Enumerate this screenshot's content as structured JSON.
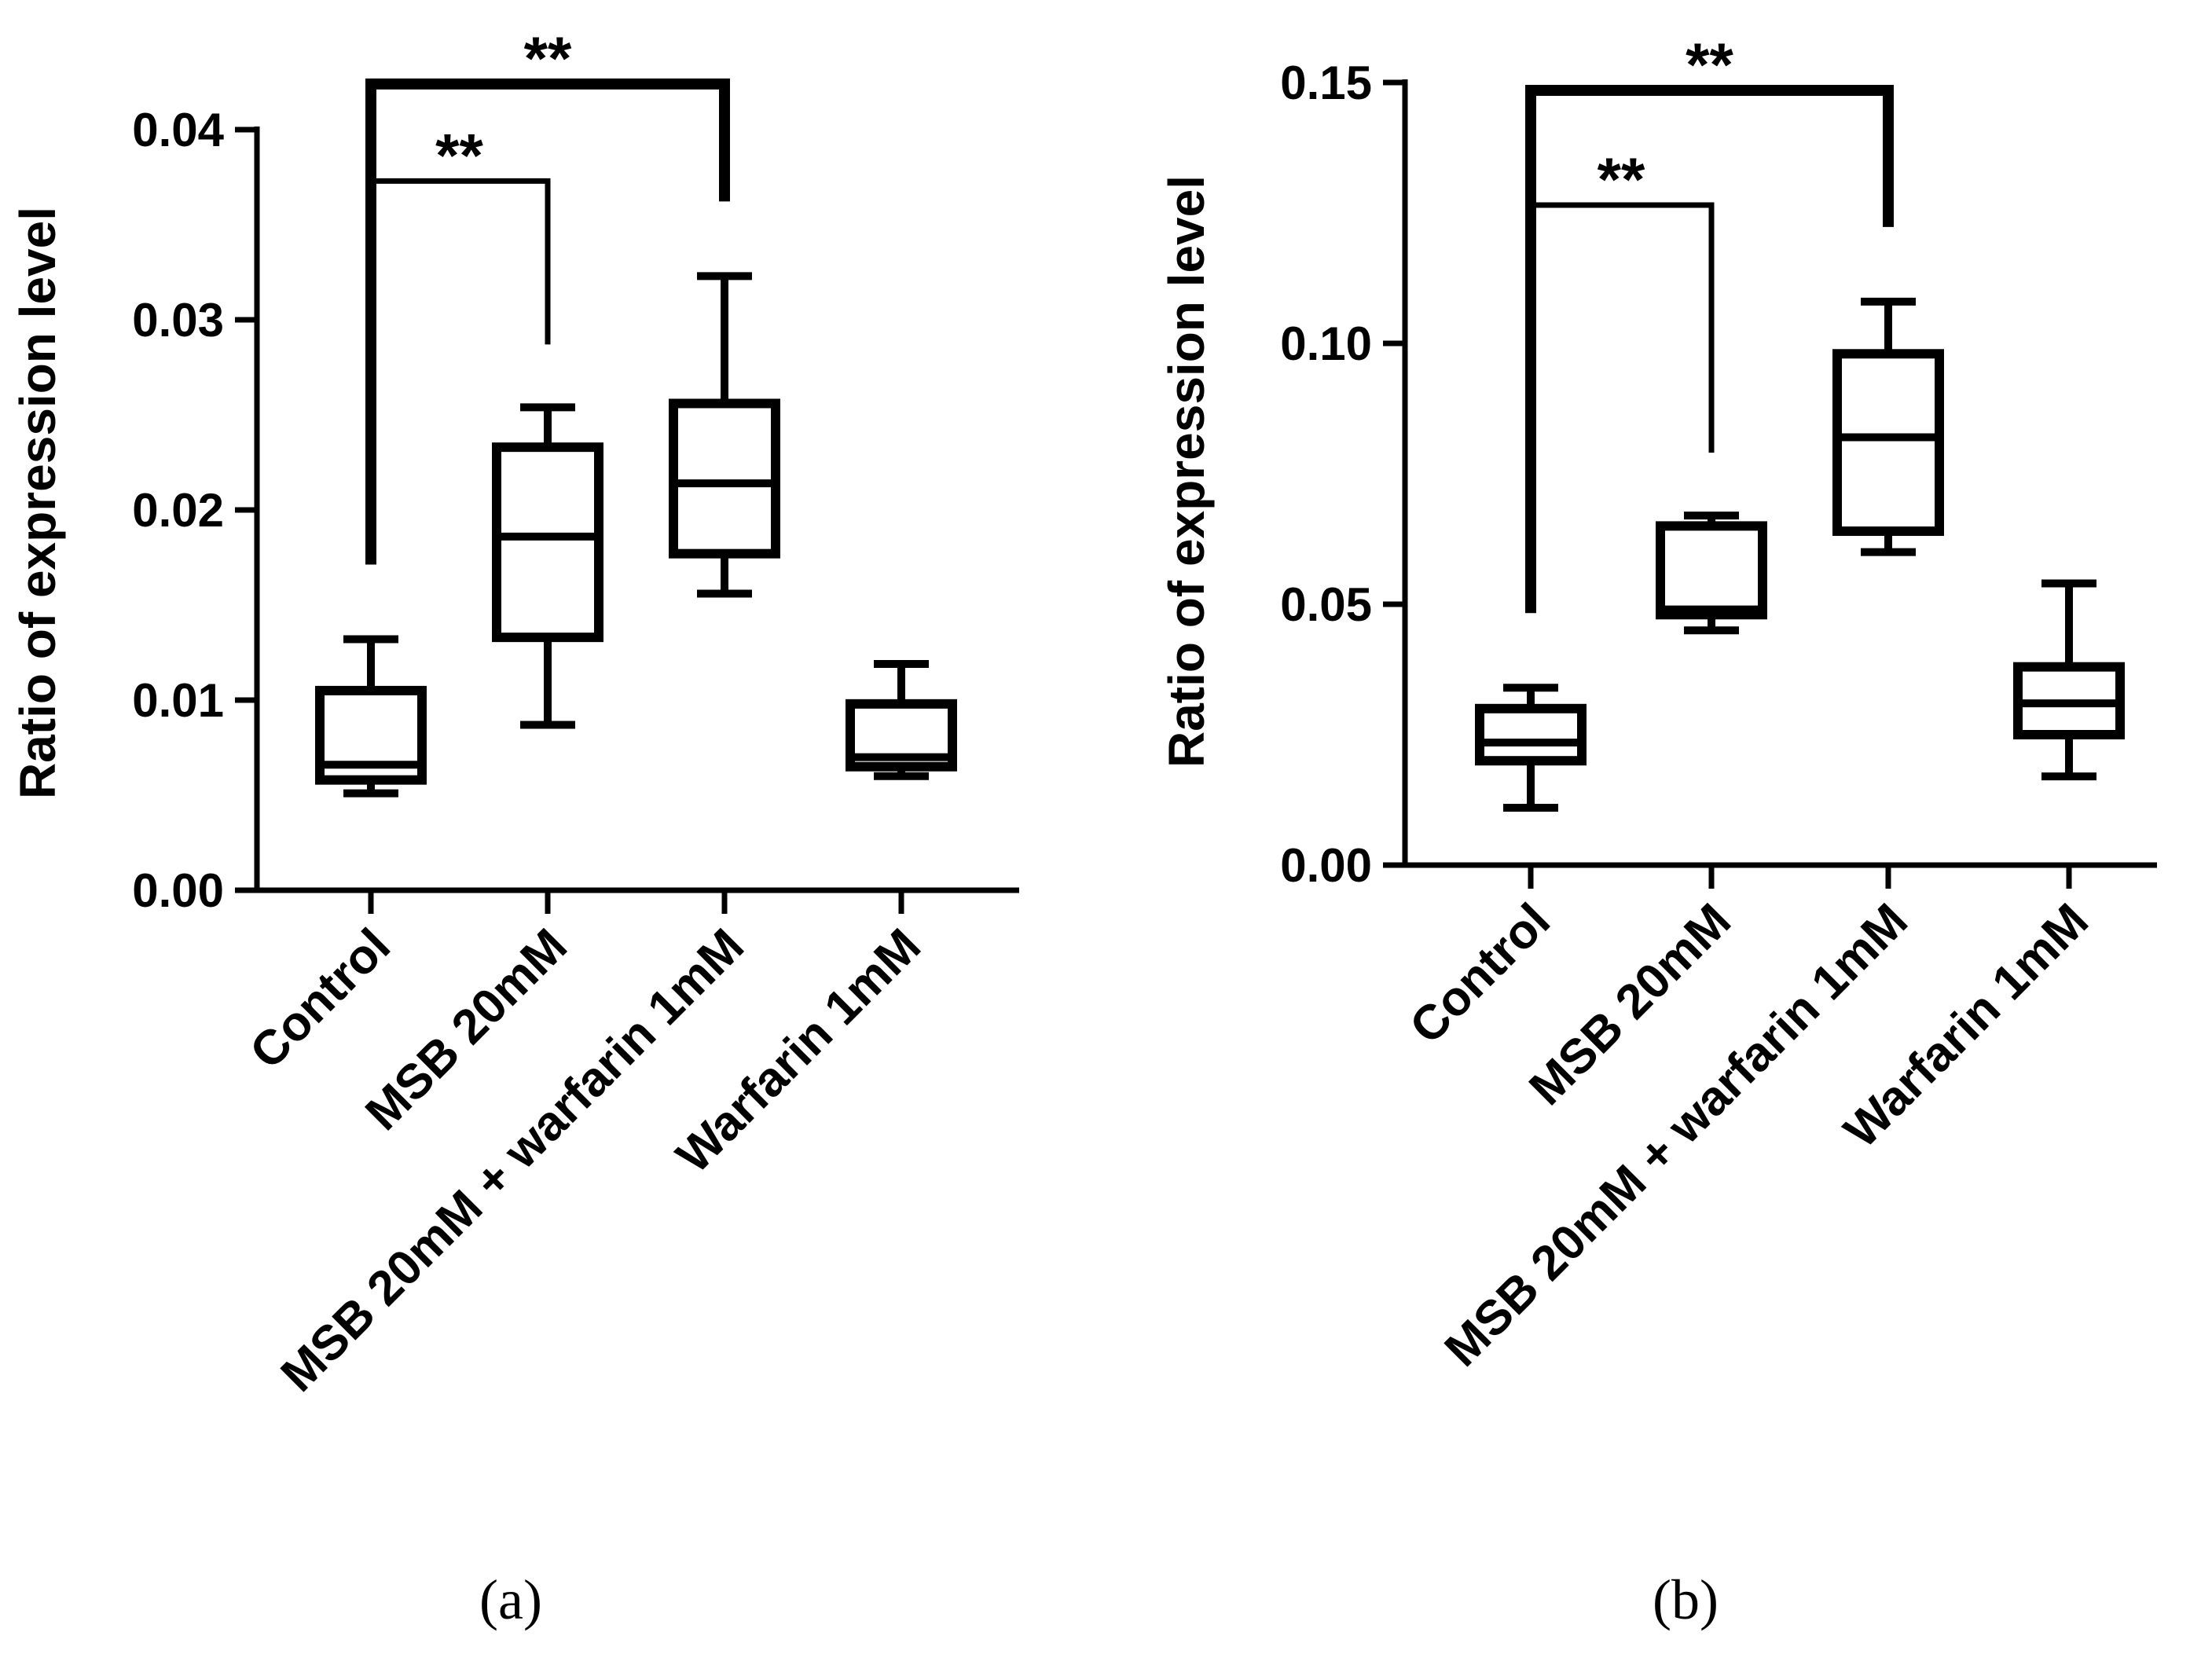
{
  "chart_data": [
    {
      "type": "box",
      "panel_label": "(a)",
      "ylabel": "Ratio of expression level",
      "ylim": [
        0,
        0.04
      ],
      "yticks": [
        "0.00",
        "0.01",
        "0.02",
        "0.03",
        "0.04"
      ],
      "categories": [
        "Control",
        "MSB 20mM",
        "MSB 20mM + warfarin 1mM",
        "Warfarin 1mM"
      ],
      "boxes": [
        {
          "min": 0.0051,
          "q1": 0.0058,
          "median": 0.0066,
          "q3": 0.0105,
          "max": 0.0132
        },
        {
          "min": 0.0087,
          "q1": 0.0133,
          "median": 0.0186,
          "q3": 0.0233,
          "max": 0.0254
        },
        {
          "min": 0.0156,
          "q1": 0.0177,
          "median": 0.0214,
          "q3": 0.0256,
          "max": 0.0323
        },
        {
          "min": 0.006,
          "q1": 0.0065,
          "median": 0.007,
          "q3": 0.0098,
          "max": 0.0119
        }
      ],
      "significance": [
        {
          "from": 0,
          "to": 1,
          "label": "**",
          "level": 0.0373,
          "thick": false
        },
        {
          "from": 0,
          "to": 2,
          "label": "**",
          "level": 0.0424,
          "thick": true
        }
      ]
    },
    {
      "type": "box",
      "panel_label": "(b)",
      "ylabel": "Ratio of expression level",
      "ylim": [
        0,
        0.15
      ],
      "yticks": [
        "0.00",
        "0.05",
        "0.10",
        "0.15"
      ],
      "categories": [
        "Control",
        "MSB 20mM",
        "MSB 20mM + warfarin 1mM",
        "Warfarin 1mM"
      ],
      "boxes": [
        {
          "min": 0.011,
          "q1": 0.02,
          "median": 0.0235,
          "q3": 0.03,
          "max": 0.034
        },
        {
          "min": 0.045,
          "q1": 0.048,
          "median": 0.049,
          "q3": 0.065,
          "max": 0.067
        },
        {
          "min": 0.06,
          "q1": 0.064,
          "median": 0.082,
          "q3": 0.098,
          "max": 0.108
        },
        {
          "min": 0.017,
          "q1": 0.025,
          "median": 0.031,
          "q3": 0.038,
          "max": 0.054
        }
      ],
      "significance": [
        {
          "from": 0,
          "to": 1,
          "label": "**",
          "level": 0.1265,
          "thick": false
        },
        {
          "from": 0,
          "to": 2,
          "label": "**",
          "level": 0.1485,
          "thick": true
        }
      ]
    }
  ]
}
